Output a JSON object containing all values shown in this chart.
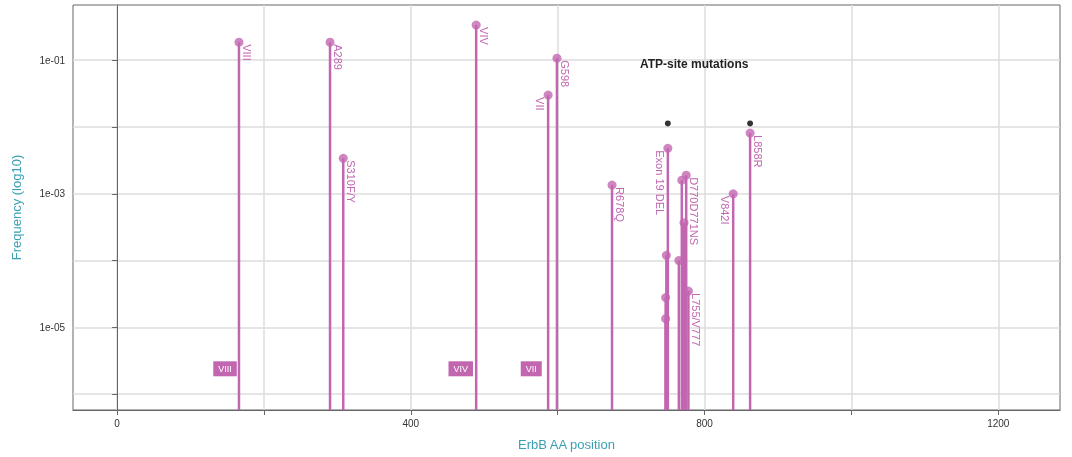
{
  "chart_data": {
    "type": "lollipop",
    "xlabel": "ErbB AA position",
    "ylabel": "Frequency (log10)",
    "log": "y",
    "grid": true,
    "marker": "circle",
    "xlim": [
      -60,
      1284
    ],
    "xticks": [
      0,
      {
        "value": 200,
        "label": null
      },
      400,
      {
        "value": 600,
        "label": null
      },
      800,
      {
        "value": 1000,
        "label": null
      },
      1200
    ],
    "ylim": [
      5.8e-07,
      0.67
    ],
    "yticks": [
      {
        "value": 1e-06,
        "label": null
      },
      {
        "value": 1e-05,
        "label": "1e-05"
      },
      {
        "value": 0.0001,
        "label": null
      },
      {
        "value": 0.001,
        "label": "1e-03"
      },
      {
        "value": 0.01,
        "label": null
      },
      {
        "value": 0.1,
        "label": "1e-01"
      }
    ],
    "series": [
      {
        "color": "#c266b0",
        "x": [
          166,
          290,
          308,
          489,
          587,
          599,
          674,
          747,
          747,
          748,
          750,
          765,
          769,
          772,
          775,
          778,
          839,
          862
        ],
        "values": [
          0.186,
          0.186,
          0.0034,
          0.335,
          0.03,
          0.107,
          0.00135,
          1.35e-05,
          2.8e-05,
          0.00012,
          0.0048,
          0.0001,
          0.0016,
          0.00037,
          0.0019,
          3.5e-05,
          0.001,
          0.0081
        ]
      },
      {
        "type": "scatter",
        "color": "#000000",
        "x": [
          750,
          862
        ],
        "values": [
          0.0113,
          0.0113
        ]
      }
    ],
    "annotations": [
      {
        "text": "VIII",
        "x": 166,
        "y": 0.186
      },
      {
        "text": "A289",
        "x": 290,
        "y": 0.186
      },
      {
        "text": "S310F/Y",
        "x": 308,
        "y": 0.0034
      },
      {
        "text": "VIV",
        "x": 489,
        "y": 0.335
      },
      {
        "text": "VII",
        "x": 587,
        "y": 0.03
      },
      {
        "text": "G598",
        "x": 599,
        "y": 0.107
      },
      {
        "text": "R678Q",
        "x": 674,
        "y": 0.00135
      },
      {
        "text": "Exon 19 DEL",
        "x": 750,
        "y": 0.0048
      },
      {
        "text": "D770D771NS",
        "x": 775,
        "y": 0.0019
      },
      {
        "text": "L755/V777",
        "x": 778,
        "y": 3.5e-05
      },
      {
        "text": "V842I",
        "x": 839,
        "y": 0.001
      },
      {
        "text": "L858R",
        "x": 862,
        "y": 0.0081
      },
      "ATP-site mutations",
      {
        "text": "VIII",
        "x": 147,
        "y": 2.4e-06
      },
      {
        "text": "VIV",
        "x": 468,
        "y": 2.4e-06
      },
      {
        "text": "VII",
        "x": 564,
        "y": 2.4e-06
      }
    ]
  }
}
